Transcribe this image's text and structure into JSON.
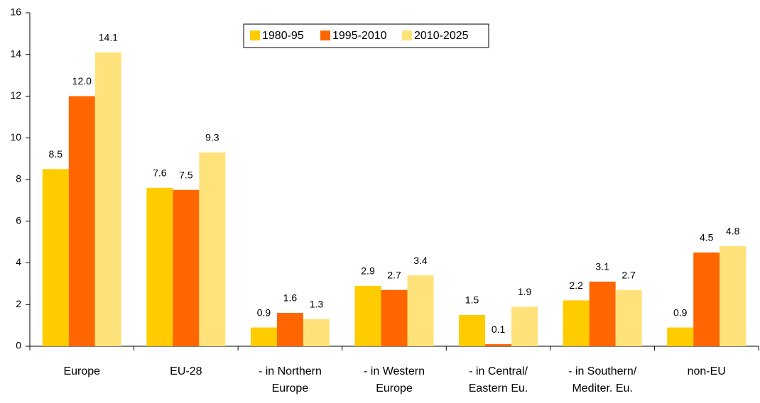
{
  "chart_data": {
    "type": "bar",
    "categories": [
      "Europe",
      "EU-28",
      "- in Northern Europe",
      "- in Western Europe",
      "- in Central/ Eastern Eu.",
      "- in Southern/ Mediter. Eu.",
      "non-EU"
    ],
    "series": [
      {
        "name": "1980-95",
        "color": "#FFCC00",
        "values": [
          8.5,
          7.6,
          0.9,
          2.9,
          1.5,
          2.2,
          0.9
        ],
        "value_labels": [
          "8.5",
          "7.6",
          "0.9",
          "2.9",
          "1.5",
          "2.2",
          "0.9"
        ]
      },
      {
        "name": "1995-2010",
        "color": "#FF6600",
        "values": [
          12.0,
          7.5,
          1.6,
          2.7,
          0.1,
          3.1,
          4.5
        ],
        "value_labels": [
          "12.0",
          "7.5",
          "1.6",
          "2.7",
          "0.1",
          "3.1",
          "4.5"
        ]
      },
      {
        "name": "2010-2025",
        "color": "#FFE27A",
        "values": [
          14.1,
          9.3,
          1.3,
          3.4,
          1.9,
          2.7,
          4.8
        ],
        "value_labels": [
          "14.1",
          "9.3",
          "1.3",
          "3.4",
          "1.9",
          "2.7",
          "4.8"
        ]
      }
    ],
    "ylim": [
      0,
      16
    ],
    "yticks": [
      0,
      2,
      4,
      6,
      8,
      10,
      12,
      14,
      16
    ],
    "grid": false,
    "legend": "top"
  }
}
